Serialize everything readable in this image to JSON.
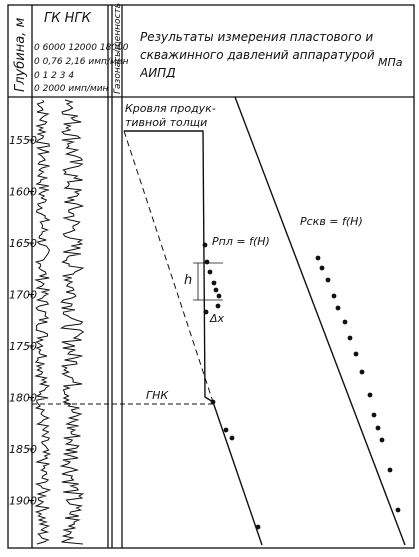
{
  "header": {
    "depth_axis": "Глубина, м",
    "log_title": "ГК НГК",
    "log_scales": [
      "0 6000 12000 18000",
      "0 0,76 2,16 имп/мин",
      "0 1 2 3 4",
      "0 2000 имп/мин"
    ],
    "saturation_column": "Газонасыщенность",
    "main_title": "Результаты измерения пластового и скважинного давлений аппаратурой АИПД",
    "unit": "МПа"
  },
  "depths": [
    1550,
    1600,
    1650,
    1700,
    1750,
    1800,
    1850,
    1900
  ],
  "annotations": {
    "roof": "Кровля продук-",
    "roof2": "тивной толщи",
    "p_reservoir": "Pпл = f(H)",
    "p_well": "Pскв = f(H)",
    "h": "h",
    "dx": "Δx",
    "gnk": "ГНК"
  }
}
